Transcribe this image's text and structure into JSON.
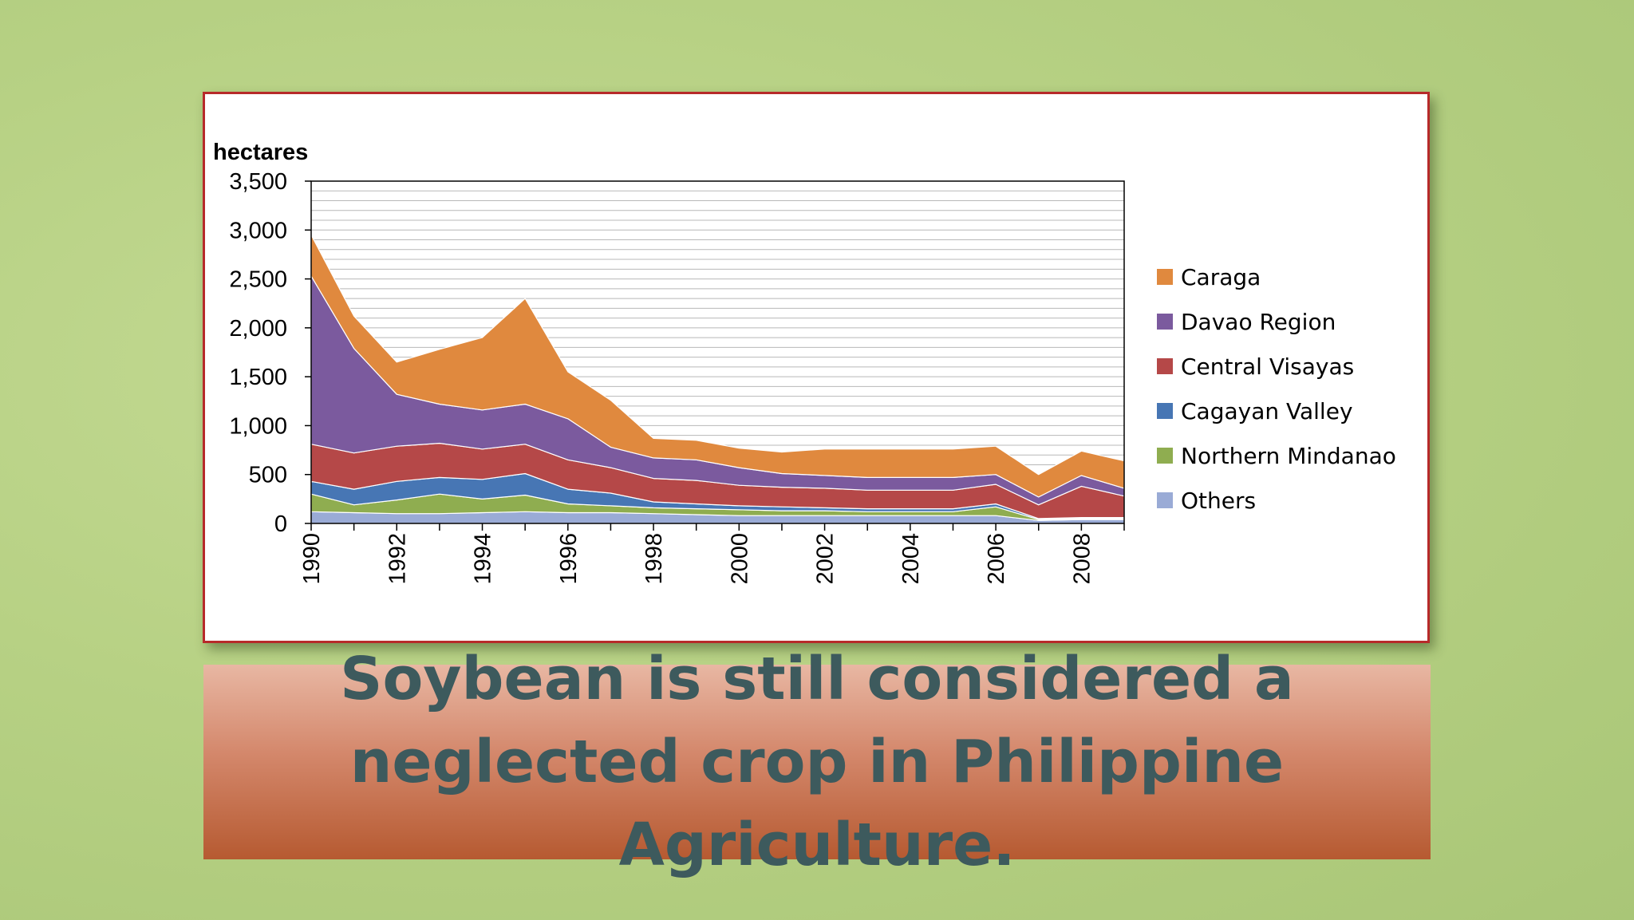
{
  "caption": "Soybean is still considered a neglected crop in Philippine Agriculture.",
  "chart_data": {
    "type": "area",
    "stacked": true,
    "ylabel": "hectares",
    "ylim": [
      0,
      3500
    ],
    "yticks": [
      0,
      500,
      1000,
      1500,
      2000,
      2500,
      3000,
      3500
    ],
    "ytick_labels": [
      "0",
      "500",
      "1,000",
      "1,500",
      "2,000",
      "2,500",
      "3,000",
      "3,500"
    ],
    "xticks": [
      1990,
      1992,
      1994,
      1996,
      1998,
      2000,
      2002,
      2004,
      2006,
      2008
    ],
    "x": [
      1990,
      1991,
      1992,
      1993,
      1994,
      1995,
      1996,
      1997,
      1998,
      1999,
      2000,
      2001,
      2002,
      2003,
      2004,
      2005,
      2006,
      2007,
      2008,
      2009
    ],
    "grid": true,
    "legend_position": "right",
    "series": [
      {
        "name": "Others",
        "color": "#9aabd6",
        "values": [
          120,
          110,
          100,
          100,
          110,
          120,
          110,
          110,
          100,
          90,
          80,
          80,
          80,
          80,
          80,
          80,
          80,
          30,
          40,
          40
        ]
      },
      {
        "name": "Northern Mindanao",
        "color": "#8fad50",
        "values": [
          180,
          80,
          140,
          200,
          140,
          170,
          90,
          70,
          60,
          60,
          60,
          50,
          50,
          40,
          40,
          40,
          90,
          10,
          10,
          10
        ]
      },
      {
        "name": "Cagayan Valley",
        "color": "#4776b4",
        "values": [
          130,
          160,
          190,
          170,
          200,
          220,
          150,
          130,
          60,
          50,
          40,
          40,
          30,
          30,
          30,
          30,
          30,
          10,
          10,
          10
        ]
      },
      {
        "name": "Central Visayas",
        "color": "#b54848",
        "values": [
          380,
          370,
          360,
          350,
          310,
          300,
          300,
          260,
          240,
          240,
          210,
          200,
          200,
          190,
          190,
          190,
          200,
          140,
          320,
          220
        ]
      },
      {
        "name": "Davao Region",
        "color": "#7b5a9e",
        "values": [
          1720,
          1070,
          530,
          400,
          400,
          410,
          420,
          210,
          210,
          210,
          180,
          140,
          130,
          130,
          130,
          130,
          100,
          80,
          110,
          80
        ]
      },
      {
        "name": "Caraga",
        "color": "#e0893e",
        "values": [
          420,
          330,
          330,
          560,
          740,
          1080,
          480,
          480,
          200,
          200,
          200,
          220,
          270,
          290,
          290,
          290,
          290,
          230,
          250,
          280
        ]
      }
    ]
  }
}
